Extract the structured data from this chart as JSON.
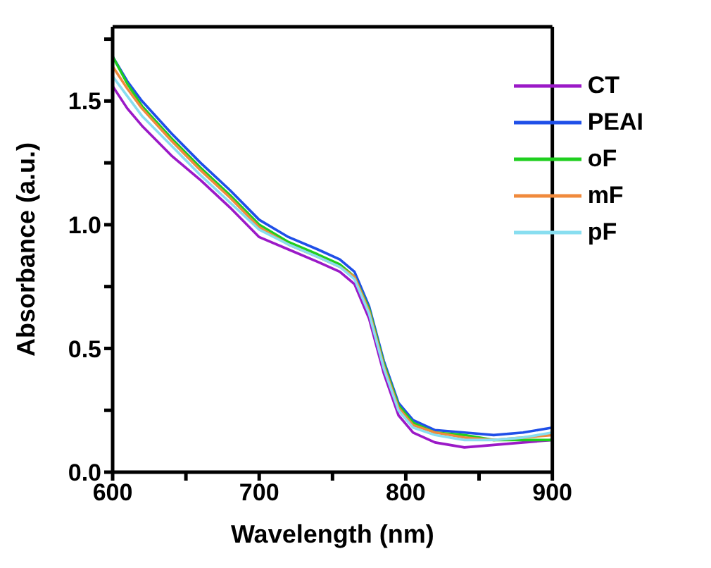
{
  "chart_data": {
    "type": "line",
    "xlabel": "Wavelength (nm)",
    "ylabel": "Absorbance (a.u.)",
    "x": [
      600,
      610,
      620,
      640,
      660,
      680,
      700,
      720,
      740,
      755,
      765,
      775,
      785,
      795,
      805,
      820,
      840,
      860,
      880,
      900
    ],
    "series": [
      {
        "name": "CT",
        "color": "#9b19c7",
        "values": [
          1.56,
          1.47,
          1.4,
          1.28,
          1.18,
          1.07,
          0.95,
          0.9,
          0.85,
          0.81,
          0.76,
          0.62,
          0.4,
          0.23,
          0.16,
          0.12,
          0.1,
          0.11,
          0.12,
          0.13
        ]
      },
      {
        "name": "PEAI",
        "color": "#1f4fe8",
        "values": [
          1.68,
          1.58,
          1.5,
          1.37,
          1.25,
          1.14,
          1.02,
          0.95,
          0.9,
          0.86,
          0.81,
          0.67,
          0.45,
          0.28,
          0.21,
          0.17,
          0.16,
          0.15,
          0.16,
          0.18
        ]
      },
      {
        "name": "oF",
        "color": "#1fcf1f",
        "values": [
          1.68,
          1.57,
          1.48,
          1.35,
          1.23,
          1.12,
          1.0,
          0.93,
          0.88,
          0.84,
          0.79,
          0.66,
          0.44,
          0.27,
          0.2,
          0.16,
          0.15,
          0.13,
          0.13,
          0.13
        ]
      },
      {
        "name": "mF",
        "color": "#f08a3c",
        "values": [
          1.64,
          1.55,
          1.47,
          1.34,
          1.22,
          1.11,
          0.99,
          0.92,
          0.87,
          0.83,
          0.79,
          0.65,
          0.43,
          0.26,
          0.19,
          0.16,
          0.14,
          0.13,
          0.14,
          0.15
        ]
      },
      {
        "name": "pF",
        "color": "#88def0",
        "values": [
          1.6,
          1.52,
          1.44,
          1.32,
          1.2,
          1.09,
          0.98,
          0.92,
          0.87,
          0.83,
          0.78,
          0.64,
          0.42,
          0.25,
          0.18,
          0.15,
          0.13,
          0.13,
          0.14,
          0.16
        ]
      }
    ],
    "xlim": [
      600,
      900
    ],
    "xticks": [
      600,
      {
        "value": 650,
        "label": null
      },
      700,
      {
        "value": 750,
        "label": null
      },
      800,
      {
        "value": 850,
        "label": null
      },
      900
    ],
    "ylim": [
      0,
      1.8
    ],
    "yticks": [
      {
        "value": 0,
        "label": "0.0"
      },
      {
        "value": 0.25,
        "label": null
      },
      {
        "value": 0.5,
        "label": "0.5"
      },
      {
        "value": 0.75,
        "label": null
      },
      {
        "value": 1,
        "label": "1.0"
      },
      {
        "value": 1.25,
        "label": null
      },
      {
        "value": 1.5,
        "label": "1.5"
      },
      {
        "value": 1.75,
        "label": null
      }
    ],
    "grid": false,
    "legend": "top right",
    "marker": "none",
    "line_style": "solid"
  }
}
